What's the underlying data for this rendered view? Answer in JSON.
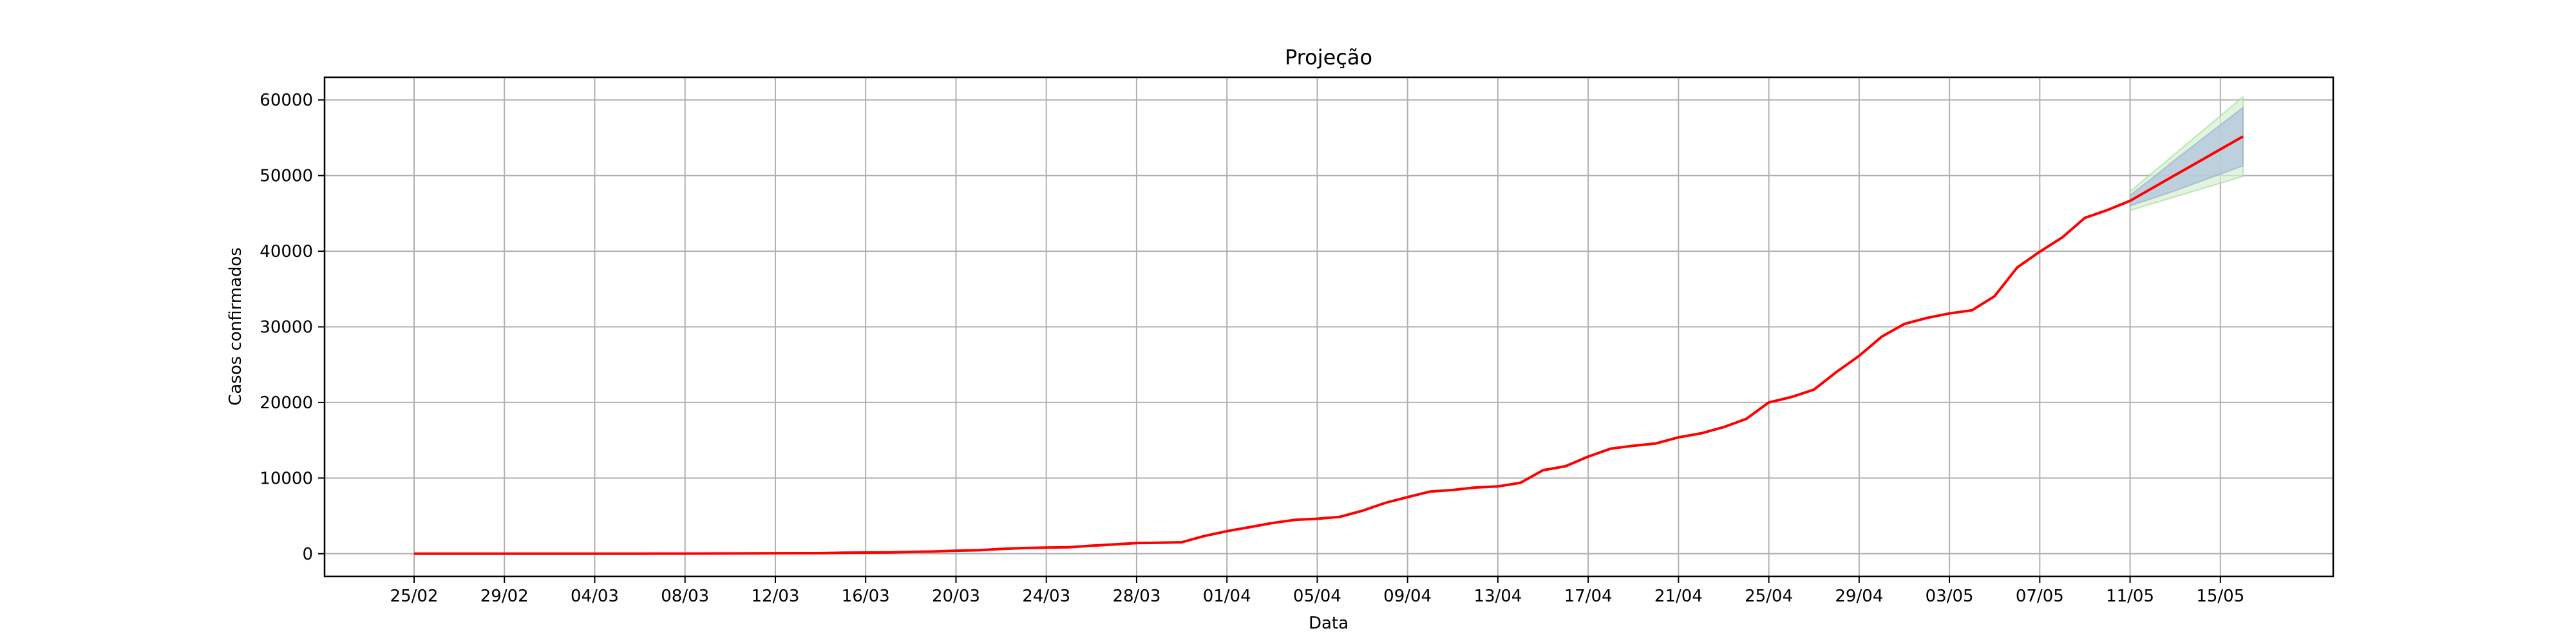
{
  "chart_data": {
    "type": "line",
    "title": "Projeção",
    "xlabel": "Data",
    "ylabel": "Casos confirmados",
    "ylim": [
      -3000,
      63000
    ],
    "yticks": [
      0,
      10000,
      20000,
      30000,
      40000,
      50000,
      60000
    ],
    "xticks": [
      "25/02",
      "29/02",
      "04/03",
      "08/03",
      "12/03",
      "16/03",
      "20/03",
      "24/03",
      "28/03",
      "01/04",
      "05/04",
      "09/04",
      "13/04",
      "17/04",
      "21/04",
      "25/04",
      "29/04",
      "03/05",
      "07/05",
      "11/05",
      "15/05"
    ],
    "grid": true,
    "colors": {
      "line": "#ff0000",
      "band_inner": "#b0c4de",
      "band_outer": "#d6efd0",
      "grid": "#b0b0b0"
    },
    "series": [
      {
        "x": [
          "25/02",
          "26/02",
          "27/02",
          "28/02",
          "29/02",
          "01/03",
          "02/03",
          "03/03",
          "04/03",
          "05/03",
          "06/03",
          "07/03",
          "08/03",
          "09/03",
          "10/03",
          "11/03",
          "12/03",
          "13/03",
          "14/03",
          "15/03",
          "16/03",
          "17/03",
          "18/03",
          "19/03",
          "20/03",
          "21/03",
          "22/03",
          "23/03",
          "24/03",
          "25/03",
          "26/03",
          "27/03",
          "28/03",
          "29/03",
          "30/03",
          "31/03",
          "01/04",
          "02/04",
          "03/04",
          "04/04",
          "05/04",
          "06/04",
          "07/04",
          "08/04",
          "09/04",
          "10/04",
          "11/04",
          "12/04",
          "13/04",
          "14/04",
          "15/04",
          "16/04",
          "17/04",
          "18/04",
          "19/04",
          "20/04",
          "21/04",
          "22/04",
          "23/04",
          "24/04",
          "25/04",
          "26/04",
          "27/04",
          "28/04",
          "29/04",
          "30/04",
          "01/05",
          "02/05",
          "03/05",
          "04/05",
          "05/05",
          "06/05",
          "07/05",
          "08/05",
          "09/05",
          "10/05",
          "11/05"
        ],
        "values": [
          1,
          1,
          1,
          1,
          2,
          2,
          2,
          3,
          3,
          6,
          10,
          13,
          16,
          19,
          30,
          46,
          56,
          64,
          65,
          136,
          152,
          164,
          240,
          286,
          396,
          459,
          631,
          745,
          810,
          862,
          1052,
          1223,
          1406,
          1451,
          1517,
          2339,
          2981,
          3506,
          4048,
          4466,
          4620,
          4866,
          5682,
          6708,
          7480,
          8216,
          8419,
          8755,
          8895,
          9371,
          11043,
          11568,
          12841,
          13894,
          14267,
          14580,
          15385,
          15914,
          16740,
          17826,
          20004,
          20715,
          21696,
          24041,
          26158,
          28698,
          30374,
          31174,
          31772,
          32187,
          34053,
          37853,
          39928,
          41830,
          44411,
          45444,
          46665
        ]
      }
    ],
    "projection": {
      "x": [
        "11/05",
        "12/05",
        "13/05",
        "14/05",
        "15/05",
        "16/05"
      ],
      "values": [
        46665,
        48370,
        50070,
        51770,
        53470,
        55170
      ],
      "band_inner_low": [
        46000,
        47000,
        48000,
        49100,
        50200,
        51300
      ],
      "band_inner_high": [
        47400,
        49700,
        52100,
        54400,
        56700,
        59000
      ],
      "band_outer_low": [
        45400,
        46300,
        47200,
        48100,
        49000,
        49900
      ],
      "band_outer_high": [
        47900,
        50400,
        52900,
        55400,
        57900,
        60400
      ]
    }
  }
}
